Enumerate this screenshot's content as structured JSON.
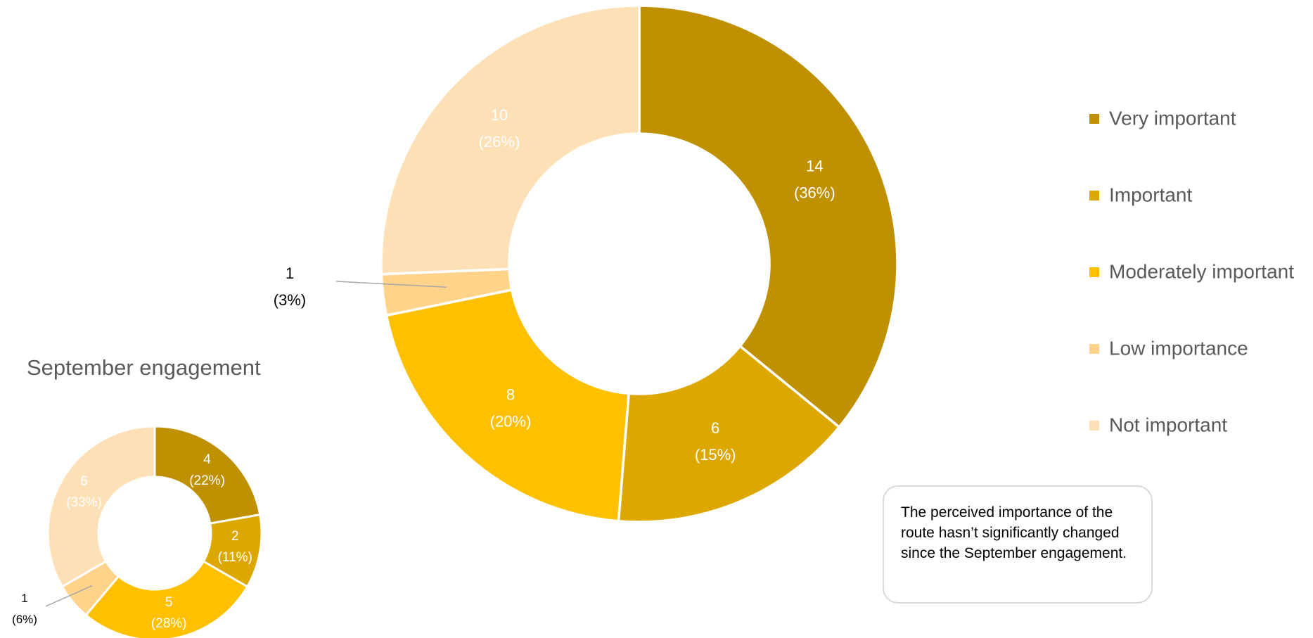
{
  "legend": {
    "items": [
      {
        "label": "Very important",
        "color": "#bf9000"
      },
      {
        "label": "Important",
        "color": "#dca800"
      },
      {
        "label": "Moderately important",
        "color": "#ffc000"
      },
      {
        "label": "Low importance",
        "color": "#ffd38a"
      },
      {
        "label": "Not important",
        "color": "#fee0b6"
      }
    ]
  },
  "note": {
    "text": "The perceived importance of the route hasn’t significantly changed since the September engagement."
  },
  "chart_data": [
    {
      "type": "donut",
      "title": "",
      "categories": [
        "Very important",
        "Important",
        "Moderately important",
        "Low importance",
        "Not important"
      ],
      "values": [
        14,
        6,
        8,
        1,
        10
      ],
      "labels": [
        "14\n(36%)",
        "6\n(15%)",
        "8\n(20%)",
        "1\n(3%)",
        "10\n(26%)"
      ],
      "colors": [
        "#bf9000",
        "#dca800",
        "#ffc000",
        "#ffd38a",
        "#fee0b6"
      ],
      "legend_position": "right"
    },
    {
      "type": "donut",
      "title": "September engagement",
      "categories": [
        "Very important",
        "Important",
        "Moderately important",
        "Low importance",
        "Not important"
      ],
      "values": [
        4,
        2,
        5,
        1,
        6
      ],
      "labels": [
        "4\n(22%)",
        "2\n(11%)",
        "5\n(28%)",
        "1\n(6%)",
        "6\n(33%)"
      ],
      "colors": [
        "#bf9000",
        "#dca800",
        "#ffc000",
        "#ffd38a",
        "#fee0b6"
      ]
    }
  ]
}
